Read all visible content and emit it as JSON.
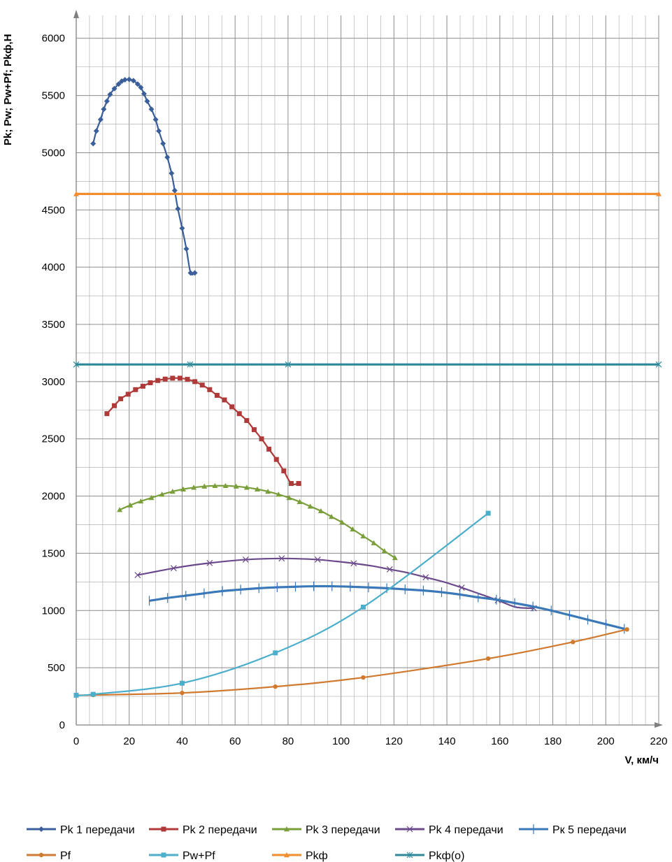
{
  "chart_data": {
    "type": "line",
    "title": "",
    "xlabel": "V, км/ч",
    "ylabel": "Pk; Pw; Pw+Pf;  Pkф,Н",
    "xlim": [
      0,
      220
    ],
    "ylim": [
      0,
      6300
    ],
    "x_ticks": [
      0,
      20,
      40,
      60,
      80,
      100,
      120,
      140,
      160,
      180,
      200,
      220
    ],
    "y_ticks": [
      0,
      500,
      1000,
      1500,
      2000,
      2500,
      3000,
      3500,
      4000,
      4500,
      5000,
      5500,
      6000
    ],
    "x_minor_step": 5,
    "y_minor_step": 250,
    "grid": true,
    "legend_position": "bottom",
    "series": [
      {
        "name": "Pk 1 передачи",
        "color": "#3A5F9A",
        "marker": "diamond",
        "marker_every": 1,
        "x": [
          6.4,
          7.6,
          9.2,
          10.4,
          11.6,
          12.8,
          14.4,
          16.0,
          17.2,
          18.4,
          20.0,
          21.6,
          23.2,
          24.4,
          25.6,
          26.8,
          28.4,
          30.0,
          31.2,
          32.8,
          34.4,
          36.0,
          37.2,
          38.4,
          40.0,
          41.6,
          43.2,
          44.8
        ],
        "y": [
          5080,
          5190,
          5290,
          5380,
          5450,
          5510,
          5560,
          5600,
          5625,
          5637,
          5640,
          5630,
          5600,
          5570,
          5515,
          5450,
          5380,
          5290,
          5190,
          5080,
          4960,
          4820,
          4670,
          4510,
          4340,
          4160,
          3950,
          3950
        ]
      },
      {
        "name": "Pk 2 передачи",
        "color": "#B03A3A",
        "marker": "square",
        "marker_every": 1,
        "x": [
          11.6,
          14.4,
          16.8,
          19.6,
          22.4,
          25.2,
          28.0,
          30.8,
          33.6,
          36.4,
          39.2,
          42.0,
          44.8,
          47.6,
          50.4,
          53.2,
          56.0,
          58.8,
          61.6,
          64.4,
          67.2,
          70.0,
          72.8,
          75.6,
          78.4,
          81.2,
          84.0
        ],
        "y": [
          2720,
          2790,
          2850,
          2890,
          2930,
          2960,
          2990,
          3010,
          3022,
          3030,
          3030,
          3020,
          3000,
          2970,
          2930,
          2880,
          2840,
          2780,
          2720,
          2660,
          2580,
          2500,
          2410,
          2320,
          2220,
          2110,
          2110
        ]
      },
      {
        "name": "Pk 3 передачи",
        "color": "#7A9E3A",
        "marker": "triangle",
        "marker_every": 1,
        "x": [
          16.4,
          20.4,
          24.4,
          28.4,
          32.4,
          36.4,
          40.4,
          44.4,
          48.4,
          52.4,
          56.4,
          60.4,
          64.4,
          68.4,
          72.4,
          76.4,
          80.4,
          84.4,
          88.4,
          92.4,
          96.4,
          100.4,
          104.4,
          108.4,
          112.4,
          116.4,
          120.4
        ],
        "y": [
          1880,
          1920,
          1955,
          1985,
          2015,
          2040,
          2060,
          2075,
          2085,
          2090,
          2090,
          2085,
          2075,
          2060,
          2040,
          2015,
          1985,
          1950,
          1910,
          1870,
          1820,
          1770,
          1710,
          1650,
          1590,
          1520,
          1460
        ]
      },
      {
        "name": "Pk 4 передачи",
        "color": "#6B4A8C",
        "marker": "x",
        "marker_every": 2,
        "x": [
          23.2,
          30.0,
          36.8,
          43.6,
          50.4,
          57.2,
          64.0,
          70.8,
          77.6,
          84.4,
          91.2,
          98.0,
          104.8,
          111.6,
          118.4,
          125.2,
          132.0,
          138.8,
          145.6,
          152.4,
          159.2,
          166.0,
          172.8
        ],
        "y": [
          1310,
          1340,
          1370,
          1395,
          1415,
          1432,
          1445,
          1452,
          1455,
          1452,
          1445,
          1430,
          1412,
          1390,
          1360,
          1330,
          1290,
          1250,
          1200,
          1145,
          1090,
          1030,
          1020
        ]
      },
      {
        "name": "Рк 5 передачи",
        "color": "#3A78B8",
        "marker": "plus",
        "marker_every": 1,
        "x": [
          27.6,
          34.5,
          41.4,
          48.3,
          55.2,
          62.1,
          69.0,
          75.9,
          82.8,
          89.7,
          96.6,
          103.5,
          110.4,
          117.3,
          124.2,
          131.1,
          138.0,
          144.9,
          151.8,
          158.7,
          165.6,
          172.5,
          179.4,
          186.3,
          193.2,
          200.1,
          207.0
        ],
        "y": [
          1085,
          1110,
          1130,
          1150,
          1170,
          1183,
          1195,
          1203,
          1208,
          1212,
          1212,
          1208,
          1202,
          1195,
          1185,
          1175,
          1160,
          1140,
          1115,
          1095,
          1065,
          1035,
          1000,
          960,
          920,
          880,
          840
        ]
      },
      {
        "name": "Pf",
        "color": "#D07A30",
        "marker": "circle",
        "marker_every": 1,
        "x": [
          0.0,
          6.4,
          40.0,
          75.2,
          108.4,
          155.6,
          187.6,
          208.0
        ],
        "y": [
          260,
          262,
          280,
          335,
          415,
          580,
          725,
          835
        ]
      },
      {
        "name": "Pw+Pf",
        "color": "#4BAECB",
        "marker": "square",
        "marker_every": 1,
        "x": [
          0.0,
          6.4,
          40.0,
          75.2,
          108.4,
          155.6
        ],
        "y": [
          260,
          268,
          365,
          630,
          1030,
          1850
        ]
      },
      {
        "name": "Pkф",
        "color": "#F28C2E",
        "marker": "triangle",
        "marker_every": 1,
        "x": [
          0,
          220
        ],
        "y": [
          4640,
          4640
        ]
      },
      {
        "name": "Pkф(o)",
        "color": "#2E8A9A",
        "marker": "star",
        "marker_every": 1,
        "x": [
          0,
          43,
          80,
          220
        ],
        "y": [
          3150,
          3150,
          3150,
          3150
        ]
      }
    ]
  }
}
